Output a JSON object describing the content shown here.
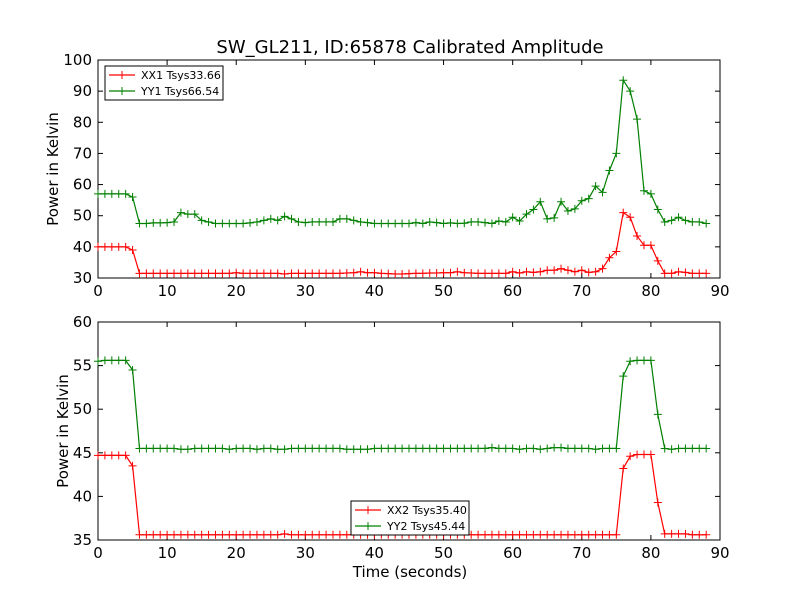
{
  "chart_data": [
    {
      "type": "line",
      "title": "SW_GL211, ID:65878 Calibrated Amplitude",
      "xlabel": "",
      "ylabel": "Power in Kelvin",
      "xlim": [
        0,
        90
      ],
      "ylim": [
        30,
        100
      ],
      "xticks": [
        "0",
        "10",
        "20",
        "30",
        "40",
        "50",
        "60",
        "70",
        "80",
        "90"
      ],
      "yticks": [
        "30",
        "40",
        "50",
        "60",
        "70",
        "80",
        "90",
        "100"
      ],
      "legend_position": "upper-left",
      "grid": false,
      "x": [
        0,
        1,
        2,
        3,
        4,
        5,
        6,
        7,
        8,
        9,
        10,
        11,
        12,
        13,
        14,
        15,
        16,
        17,
        18,
        19,
        20,
        21,
        22,
        23,
        24,
        25,
        26,
        27,
        28,
        29,
        30,
        31,
        32,
        33,
        34,
        35,
        36,
        37,
        38,
        39,
        40,
        41,
        42,
        43,
        44,
        45,
        46,
        47,
        48,
        49,
        50,
        51,
        52,
        53,
        54,
        55,
        56,
        57,
        58,
        59,
        60,
        61,
        62,
        63,
        64,
        65,
        66,
        67,
        68,
        69,
        70,
        71,
        72,
        73,
        74,
        75,
        76,
        77,
        78,
        79,
        80,
        81,
        82,
        83,
        84,
        85,
        86,
        87,
        88
      ],
      "series": [
        {
          "name": "XX1 Tsys33.66",
          "color": "#ff0000",
          "values": [
            40,
            40,
            40,
            40,
            40,
            39,
            31.5,
            31.5,
            31.5,
            31.5,
            31.5,
            31.5,
            31.5,
            31.5,
            31.5,
            31.5,
            31.5,
            31.5,
            31.5,
            31.5,
            31.7,
            31.5,
            31.5,
            31.5,
            31.5,
            31.5,
            31.5,
            31.3,
            31.5,
            31.5,
            31.5,
            31.5,
            31.5,
            31.5,
            31.5,
            31.5,
            31.6,
            31.7,
            32,
            31.7,
            31.7,
            31.5,
            31.4,
            31.3,
            31.3,
            31.4,
            31.5,
            31.5,
            31.6,
            31.6,
            31.7,
            31.7,
            32,
            31.7,
            31.6,
            31.5,
            31.5,
            31.5,
            31.5,
            31.5,
            32,
            31.6,
            32,
            31.8,
            32,
            32.5,
            32.5,
            33,
            32.5,
            32,
            32.5,
            31.8,
            32,
            33,
            36.5,
            38.5,
            51,
            49.5,
            43.5,
            40.5,
            40.5,
            35.5,
            31.5,
            31.5,
            32,
            31.8,
            31.5,
            31.5,
            31.5
          ]
        },
        {
          "name": "YY1 Tsys66.54",
          "color": "#008000",
          "values": [
            57,
            57,
            57,
            57,
            57,
            56,
            47.5,
            47.5,
            47.7,
            47.7,
            47.8,
            48,
            51,
            50.5,
            50.5,
            48.5,
            48,
            47.5,
            47.5,
            47.5,
            47.5,
            47.5,
            47.7,
            48,
            48.5,
            49,
            48.5,
            49.8,
            49,
            48,
            47.8,
            48,
            48,
            48,
            48,
            49,
            49,
            48.5,
            48,
            47.8,
            47.5,
            47.5,
            47.5,
            47.5,
            47.5,
            47.5,
            47.8,
            47.5,
            48,
            47.8,
            47.5,
            47.7,
            47.5,
            47.6,
            48,
            48,
            47.8,
            47.5,
            48.3,
            48,
            49.5,
            48.3,
            50.5,
            52,
            54.5,
            49,
            49.3,
            54.5,
            51.5,
            52.2,
            54.8,
            55.5,
            59.5,
            57.5,
            64.5,
            70,
            93.5,
            90,
            81,
            58,
            57,
            52,
            48,
            48.5,
            49.5,
            48.5,
            48,
            48,
            47.5
          ]
        }
      ]
    },
    {
      "type": "line",
      "title": "",
      "xlabel": "Time (seconds)",
      "ylabel": "Power in Kelvin",
      "xlim": [
        0,
        90
      ],
      "ylim": [
        35,
        60
      ],
      "xticks": [
        "0",
        "10",
        "20",
        "30",
        "40",
        "50",
        "60",
        "70",
        "80",
        "90"
      ],
      "yticks": [
        "35",
        "40",
        "45",
        "50",
        "55",
        "60"
      ],
      "legend_position": "lower-center",
      "grid": false,
      "x": [
        0,
        1,
        2,
        3,
        4,
        5,
        6,
        7,
        8,
        9,
        10,
        11,
        12,
        13,
        14,
        15,
        16,
        17,
        18,
        19,
        20,
        21,
        22,
        23,
        24,
        25,
        26,
        27,
        28,
        29,
        30,
        31,
        32,
        33,
        34,
        35,
        36,
        37,
        38,
        39,
        40,
        41,
        42,
        43,
        44,
        45,
        46,
        47,
        48,
        49,
        50,
        51,
        52,
        53,
        54,
        55,
        56,
        57,
        58,
        59,
        60,
        61,
        62,
        63,
        64,
        65,
        66,
        67,
        68,
        69,
        70,
        71,
        72,
        73,
        74,
        75,
        76,
        77,
        78,
        79,
        80,
        81,
        82,
        83,
        84,
        85,
        86,
        87,
        88
      ],
      "series": [
        {
          "name": "XX2 Tsys35.40",
          "color": "#ff0000",
          "values": [
            44.7,
            44.7,
            44.7,
            44.7,
            44.7,
            43.5,
            35.6,
            35.6,
            35.6,
            35.6,
            35.6,
            35.6,
            35.6,
            35.6,
            35.6,
            35.6,
            35.6,
            35.6,
            35.6,
            35.6,
            35.6,
            35.6,
            35.6,
            35.6,
            35.6,
            35.6,
            35.6,
            35.7,
            35.6,
            35.6,
            35.6,
            35.6,
            35.6,
            35.6,
            35.6,
            35.6,
            35.6,
            35.6,
            35.6,
            35.6,
            35.6,
            35.6,
            35.6,
            35.6,
            35.6,
            35.6,
            35.6,
            35.6,
            35.6,
            35.6,
            35.6,
            35.6,
            35.6,
            35.6,
            35.6,
            35.6,
            35.6,
            35.6,
            35.6,
            35.6,
            35.6,
            35.6,
            35.6,
            35.6,
            35.6,
            35.6,
            35.6,
            35.6,
            35.6,
            35.6,
            35.6,
            35.6,
            35.6,
            35.6,
            35.6,
            35.6,
            43.2,
            44.6,
            44.8,
            44.8,
            44.8,
            39.3,
            35.7,
            35.7,
            35.7,
            35.7,
            35.6,
            35.6,
            35.6
          ]
        },
        {
          "name": "YY2 Tsys45.44",
          "color": "#008000",
          "values": [
            55.5,
            55.6,
            55.6,
            55.6,
            55.6,
            54.5,
            45.5,
            45.5,
            45.5,
            45.5,
            45.5,
            45.5,
            45.4,
            45.4,
            45.5,
            45.5,
            45.5,
            45.5,
            45.5,
            45.4,
            45.5,
            45.5,
            45.5,
            45.4,
            45.5,
            45.5,
            45.4,
            45.4,
            45.5,
            45.5,
            45.5,
            45.5,
            45.5,
            45.5,
            45.5,
            45.5,
            45.4,
            45.4,
            45.4,
            45.4,
            45.5,
            45.5,
            45.5,
            45.5,
            45.5,
            45.5,
            45.5,
            45.5,
            45.5,
            45.5,
            45.5,
            45.5,
            45.5,
            45.5,
            45.5,
            45.5,
            45.5,
            45.6,
            45.5,
            45.5,
            45.5,
            45.4,
            45.5,
            45.5,
            45.4,
            45.5,
            45.6,
            45.6,
            45.5,
            45.5,
            45.5,
            45.5,
            45.4,
            45.5,
            45.5,
            45.5,
            53.8,
            55.5,
            55.6,
            55.6,
            55.6,
            49.4,
            45.5,
            45.4,
            45.5,
            45.5,
            45.5,
            45.5,
            45.5
          ]
        }
      ]
    }
  ]
}
